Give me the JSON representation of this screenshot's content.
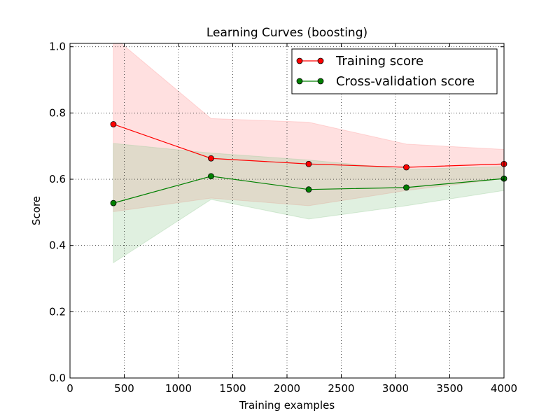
{
  "chart_data": {
    "type": "line",
    "title": "Learning Curves (boosting)",
    "xlabel": "Training examples",
    "ylabel": "Score",
    "xlim": [
      0,
      4000
    ],
    "ylim": [
      0.0,
      1.01
    ],
    "xticks": [
      0,
      500,
      1000,
      1500,
      2000,
      2500,
      3000,
      3500,
      4000
    ],
    "yticks": [
      0.0,
      0.2,
      0.4,
      0.6,
      0.8,
      1.0
    ],
    "xtick_labels": [
      "0",
      "500",
      "1000",
      "1500",
      "2000",
      "2500",
      "3000",
      "3500",
      "4000"
    ],
    "ytick_labels": [
      "0.0",
      "0.2",
      "0.4",
      "0.6",
      "0.8",
      "1.0"
    ],
    "grid": true,
    "legend_position": "top-right",
    "x": [
      400,
      1300,
      2200,
      3100,
      4000
    ],
    "series": [
      {
        "name": "Training score",
        "color": "#ff0000",
        "band_color": "#ff9999",
        "values": [
          0.766,
          0.663,
          0.646,
          0.636,
          0.646
        ],
        "band_upper": [
          1.03,
          0.783,
          0.772,
          0.706,
          0.69
        ],
        "band_lower": [
          0.502,
          0.543,
          0.52,
          0.566,
          0.602
        ]
      },
      {
        "name": "Cross-validation score",
        "color": "#008000",
        "band_color": "#99cc99",
        "values": [
          0.528,
          0.609,
          0.569,
          0.575,
          0.602
        ],
        "band_upper": [
          0.708,
          0.679,
          0.658,
          0.63,
          0.638
        ],
        "band_lower": [
          0.348,
          0.539,
          0.48,
          0.52,
          0.566
        ]
      }
    ]
  }
}
